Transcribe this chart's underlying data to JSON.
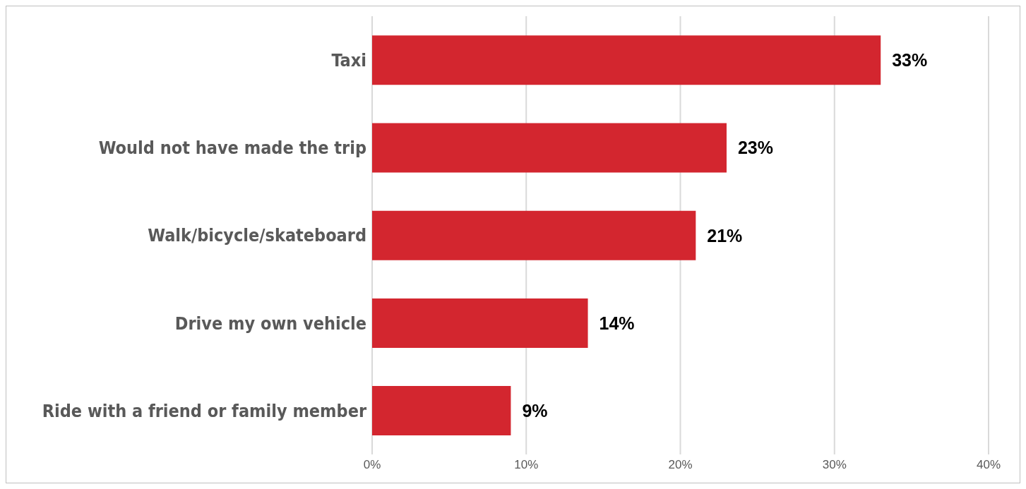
{
  "chart_data": {
    "type": "bar",
    "orientation": "horizontal",
    "categories": [
      "Taxi",
      "Would not have made the trip",
      "Walk/bicycle/skateboard",
      "Drive my own vehicle",
      "Ride with a friend or family member"
    ],
    "values": [
      33,
      23,
      21,
      14,
      9
    ],
    "value_labels": [
      "33%",
      "23%",
      "21%",
      "14%",
      "9%"
    ],
    "color": "#d3262f",
    "xlim": [
      0,
      40
    ],
    "xticks": [
      {
        "value": 0,
        "label": "0%"
      },
      {
        "value": 10,
        "label": "10%"
      },
      {
        "value": 20,
        "label": "20%"
      },
      {
        "value": 30,
        "label": "30%"
      },
      {
        "value": 40,
        "label": "40%"
      }
    ],
    "grid": "x"
  }
}
